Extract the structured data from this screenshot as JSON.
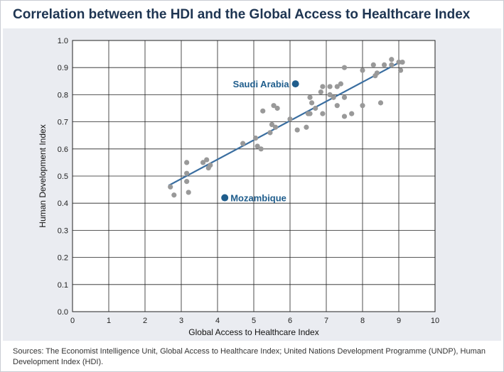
{
  "chart_data": {
    "type": "scatter",
    "title": "Correlation between the HDI and the Global Access to Healthcare Index",
    "xlabel": "Global Access to Healthcare Index",
    "ylabel": "Human Development Index",
    "xlim": [
      0,
      10
    ],
    "ylim": [
      0,
      1.0
    ],
    "x_ticks": [
      "0",
      "1",
      "2",
      "3",
      "4",
      "5",
      "6",
      "7",
      "8",
      "9",
      "10"
    ],
    "y_ticks": [
      "0.0",
      "0.1",
      "0.2",
      "0.3",
      "0.4",
      "0.5",
      "0.6",
      "0.7",
      "0.8",
      "0.9",
      "1.0"
    ],
    "grid": true,
    "point_color": "#999999",
    "highlight_color": "#1f5d8c",
    "trend_color": "#3a6ea0",
    "points": [
      {
        "x": 2.7,
        "y": 0.46
      },
      {
        "x": 2.8,
        "y": 0.43
      },
      {
        "x": 3.15,
        "y": 0.55
      },
      {
        "x": 3.15,
        "y": 0.51
      },
      {
        "x": 3.15,
        "y": 0.48
      },
      {
        "x": 3.2,
        "y": 0.44
      },
      {
        "x": 3.6,
        "y": 0.55
      },
      {
        "x": 3.7,
        "y": 0.56
      },
      {
        "x": 3.75,
        "y": 0.53
      },
      {
        "x": 3.8,
        "y": 0.54
      },
      {
        "x": 4.7,
        "y": 0.62
      },
      {
        "x": 5.05,
        "y": 0.64
      },
      {
        "x": 5.1,
        "y": 0.61
      },
      {
        "x": 5.2,
        "y": 0.6
      },
      {
        "x": 5.25,
        "y": 0.74
      },
      {
        "x": 5.45,
        "y": 0.66
      },
      {
        "x": 5.5,
        "y": 0.69
      },
      {
        "x": 5.6,
        "y": 0.68
      },
      {
        "x": 5.55,
        "y": 0.76
      },
      {
        "x": 5.65,
        "y": 0.75
      },
      {
        "x": 6.0,
        "y": 0.71
      },
      {
        "x": 6.2,
        "y": 0.67
      },
      {
        "x": 6.45,
        "y": 0.68
      },
      {
        "x": 6.5,
        "y": 0.73
      },
      {
        "x": 6.55,
        "y": 0.73
      },
      {
        "x": 6.55,
        "y": 0.79
      },
      {
        "x": 6.6,
        "y": 0.77
      },
      {
        "x": 6.7,
        "y": 0.75
      },
      {
        "x": 6.85,
        "y": 0.81
      },
      {
        "x": 6.9,
        "y": 0.83
      },
      {
        "x": 6.9,
        "y": 0.73
      },
      {
        "x": 7.1,
        "y": 0.83
      },
      {
        "x": 7.1,
        "y": 0.8
      },
      {
        "x": 7.2,
        "y": 0.79
      },
      {
        "x": 7.3,
        "y": 0.83
      },
      {
        "x": 7.3,
        "y": 0.76
      },
      {
        "x": 7.4,
        "y": 0.84
      },
      {
        "x": 7.5,
        "y": 0.9
      },
      {
        "x": 7.5,
        "y": 0.79
      },
      {
        "x": 7.5,
        "y": 0.72
      },
      {
        "x": 7.7,
        "y": 0.73
      },
      {
        "x": 8.0,
        "y": 0.89
      },
      {
        "x": 8.0,
        "y": 0.76
      },
      {
        "x": 8.3,
        "y": 0.91
      },
      {
        "x": 8.35,
        "y": 0.87
      },
      {
        "x": 8.4,
        "y": 0.88
      },
      {
        "x": 8.5,
        "y": 0.77
      },
      {
        "x": 8.6,
        "y": 0.91
      },
      {
        "x": 8.8,
        "y": 0.93
      },
      {
        "x": 8.8,
        "y": 0.91
      },
      {
        "x": 9.0,
        "y": 0.92
      },
      {
        "x": 9.05,
        "y": 0.89
      },
      {
        "x": 9.1,
        "y": 0.92
      }
    ],
    "highlighted": [
      {
        "label": "Saudi Arabia",
        "x": 6.15,
        "y": 0.84
      },
      {
        "label": "Mozambique",
        "x": 4.2,
        "y": 0.42
      }
    ],
    "trend_line": {
      "x1": 2.65,
      "y1": 0.465,
      "x2": 9.1,
      "y2": 0.925
    }
  },
  "sources": "Sources: The Economist Intelligence Unit, Global Access to Healthcare Index; United Nations Development  Programme (UNDP), Human Development Index (HDI)."
}
